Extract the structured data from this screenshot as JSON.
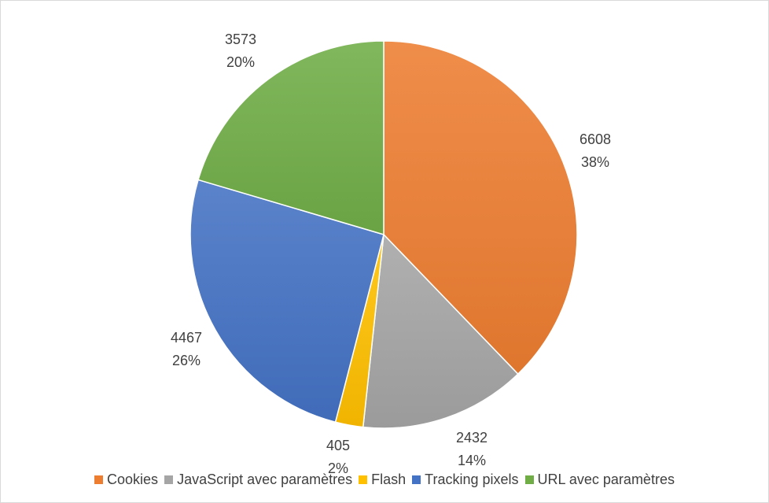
{
  "chart_data": {
    "type": "pie",
    "categories": [
      "Cookies",
      "JavaScript avec paramètres",
      "Flash",
      "Tracking pixels",
      "URL avec paramètres"
    ],
    "values": [
      6608,
      2432,
      405,
      4467,
      3573
    ],
    "percent_labels": [
      "38%",
      "14%",
      "2%",
      "26%",
      "20%"
    ],
    "value_labels": [
      "6608",
      "2432",
      "405",
      "4467",
      "3573"
    ],
    "colors": [
      "#ed7d31",
      "#a5a5a5",
      "#ffc000",
      "#4472c4",
      "#70ad47"
    ],
    "title": "",
    "legend_position": "bottom",
    "data_labels": "value and percent, outside end"
  }
}
